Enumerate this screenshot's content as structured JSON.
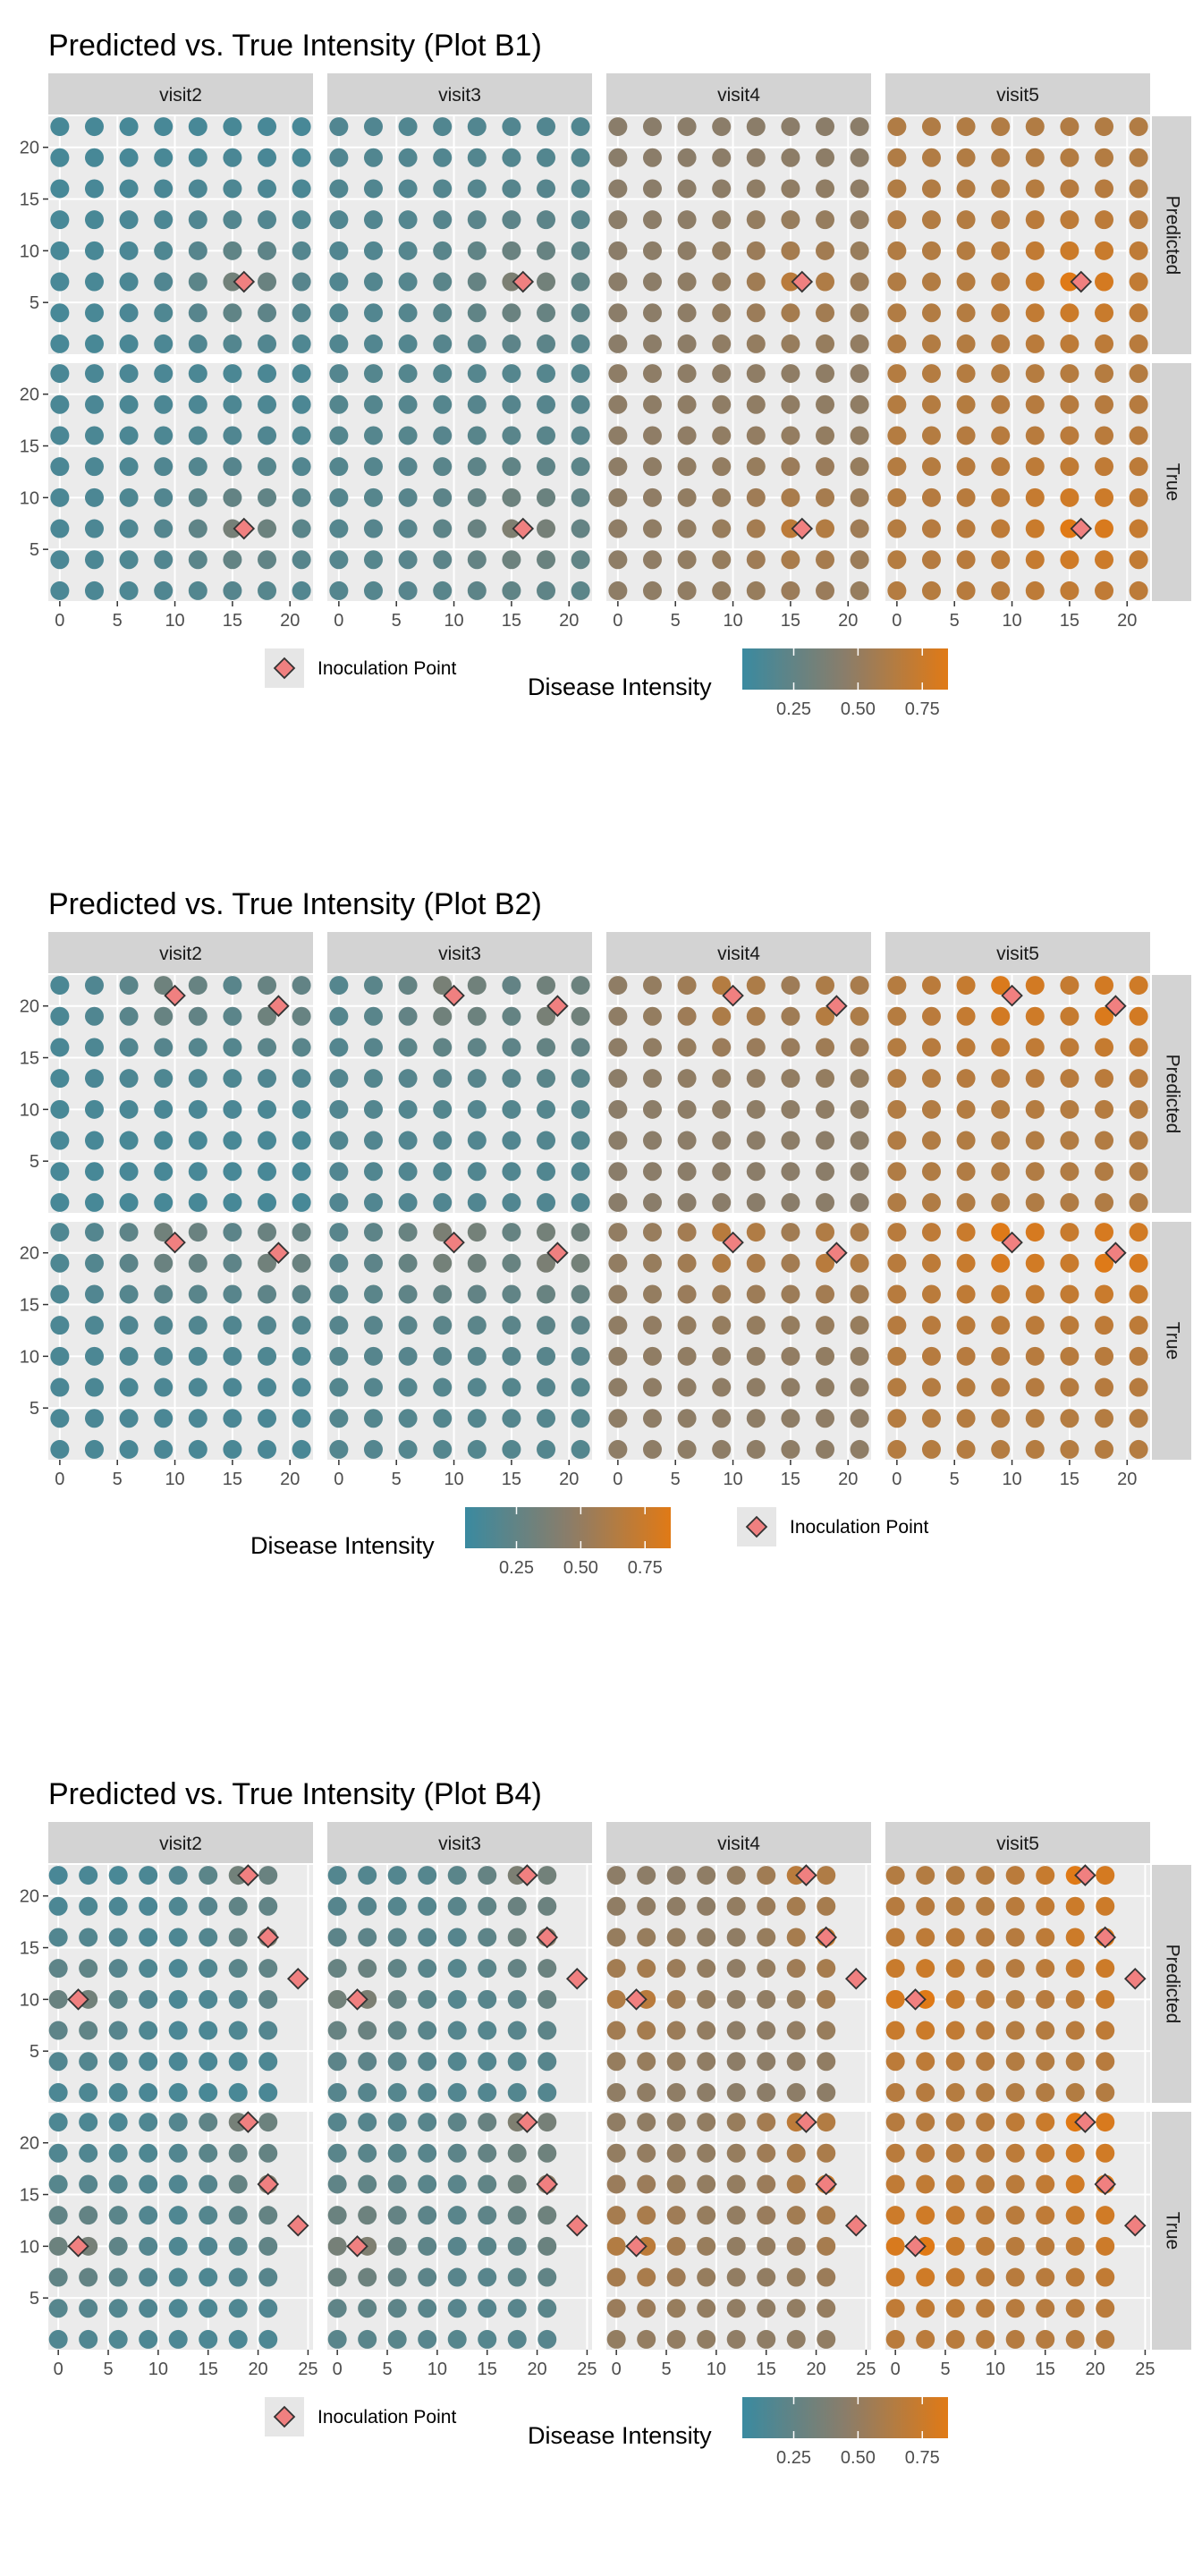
{
  "colors": {
    "panel_bg": "#ebebeb",
    "strip_bg": "#d3d3d3",
    "grid_line": "#ffffff",
    "low": "#3a8aa0",
    "mid": "#8a7d6a",
    "high": "#e07a16",
    "inoculation_fill": "#f08080",
    "inoculation_stroke": "#333333",
    "text": "#000000",
    "tick_text": "#4d4d4d"
  },
  "chart_data": [
    {
      "type": "scatter",
      "title": "Predicted vs. True Intensity (Plot B1)",
      "facet_cols": [
        "visit2",
        "visit3",
        "visit4",
        "visit5"
      ],
      "facet_rows": [
        "Predicted",
        "True"
      ],
      "x_grid": [
        0,
        3,
        6,
        9,
        12,
        15,
        18,
        21
      ],
      "y_grid": [
        1,
        4,
        7,
        10,
        13,
        16,
        19,
        22
      ],
      "xlim": [
        -1,
        22
      ],
      "ylim": [
        0,
        23
      ],
      "xticks": [
        "0",
        "5",
        "10",
        "15",
        "20"
      ],
      "yticks": [
        "5",
        "10",
        "15",
        "20"
      ],
      "intensity_by_visit": [
        0.08,
        0.14,
        0.5,
        0.72
      ],
      "inoculation_points": [
        [
          16,
          7
        ]
      ],
      "legend": {
        "shape_label": "Inoculation Point",
        "color_title": "Disease Intensity",
        "color_ticks": [
          "0.25",
          "0.50",
          "0.75"
        ],
        "order": "shape-first"
      }
    },
    {
      "type": "scatter",
      "title": "Predicted vs. True Intensity (Plot B2)",
      "facet_cols": [
        "visit2",
        "visit3",
        "visit4",
        "visit5"
      ],
      "facet_rows": [
        "Predicted",
        "True"
      ],
      "x_grid": [
        0,
        3,
        6,
        9,
        12,
        15,
        18,
        21
      ],
      "y_grid": [
        1,
        4,
        7,
        10,
        13,
        16,
        19,
        22
      ],
      "xlim": [
        -1,
        22
      ],
      "ylim": [
        0,
        23
      ],
      "xticks": [
        "0",
        "5",
        "10",
        "15",
        "20"
      ],
      "yticks": [
        "5",
        "10",
        "15",
        "20"
      ],
      "intensity_by_visit": [
        0.08,
        0.14,
        0.5,
        0.72
      ],
      "inoculation_points": [
        [
          10,
          21
        ],
        [
          19,
          20
        ]
      ],
      "legend": {
        "shape_label": "Inoculation Point",
        "color_title": "Disease Intensity",
        "color_ticks": [
          "0.25",
          "0.50",
          "0.75"
        ],
        "order": "color-first"
      }
    },
    {
      "type": "scatter",
      "title": "Predicted vs. True Intensity (Plot B4)",
      "facet_cols": [
        "visit2",
        "visit3",
        "visit4",
        "visit5"
      ],
      "facet_rows": [
        "Predicted",
        "True"
      ],
      "x_grid": [
        0,
        3,
        6,
        9,
        12,
        15,
        18,
        21
      ],
      "y_grid": [
        1,
        4,
        7,
        10,
        13,
        16,
        19,
        22
      ],
      "xlim": [
        -1,
        25.5
      ],
      "ylim": [
        0,
        23
      ],
      "xticks": [
        "0",
        "5",
        "10",
        "15",
        "20",
        "25"
      ],
      "yticks": [
        "5",
        "10",
        "15",
        "20"
      ],
      "intensity_by_visit": [
        0.08,
        0.14,
        0.5,
        0.72
      ],
      "inoculation_points": [
        [
          19,
          22
        ],
        [
          21,
          16
        ],
        [
          24,
          12
        ],
        [
          2,
          10
        ]
      ],
      "legend": {
        "shape_label": "Inoculation Point",
        "color_title": "Disease Intensity",
        "color_ticks": [
          "0.25",
          "0.50",
          "0.75"
        ],
        "order": "shape-first"
      }
    }
  ]
}
